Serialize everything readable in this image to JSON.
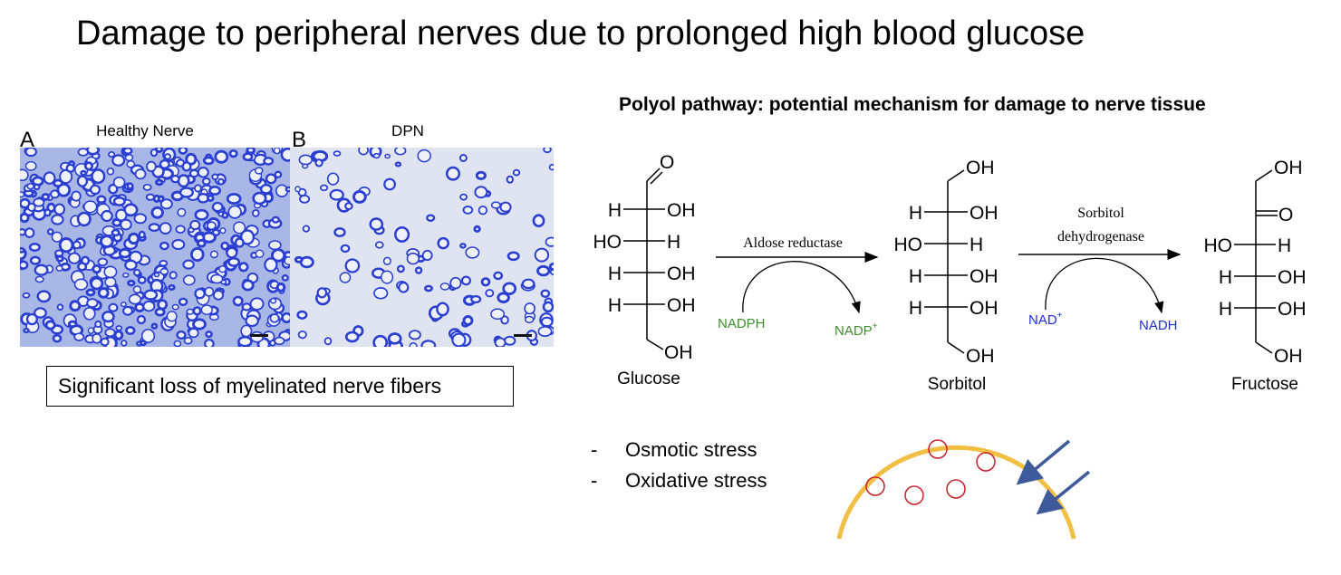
{
  "title": "Damage to peripheral nerves due to prolonged high blood glucose",
  "micrographs": [
    {
      "label": "A",
      "title": "Healthy Nerve"
    },
    {
      "label": "B",
      "title": "DPN"
    }
  ],
  "caption": "Significant loss of myelinated nerve fibers",
  "pathway": {
    "title": "Polyol pathway: potential mechanism for damage to nerve tissue",
    "molecules": [
      {
        "name": "Glucose",
        "left_groups": [
          "H",
          "HO",
          "H",
          "H"
        ],
        "right_groups": [
          "OH",
          "H",
          "OH",
          "OH"
        ],
        "top": "O",
        "bottom": "OH"
      },
      {
        "name": "Sorbitol",
        "left_groups": [
          "H",
          "HO",
          "H",
          "H"
        ],
        "right_groups": [
          "OH",
          "H",
          "OH",
          "OH"
        ],
        "top": "OH",
        "bottom": "OH"
      },
      {
        "name": "Fructose",
        "left_groups": [
          "HO",
          "H",
          "H"
        ],
        "right_groups": [
          "H",
          "OH",
          "OH"
        ],
        "top": "OH",
        "carbonyl": "O",
        "bottom": "OH"
      }
    ],
    "enzyme1": "Aldose reductase",
    "cofactor1_in": "NADPH",
    "cofactor1_out": "NADP",
    "cofactor1_out_sup": "+",
    "enzyme2_line1": "Sorbitol",
    "enzyme2_line2": "dehydrogenase",
    "cofactor2_in": "NAD",
    "cofactor2_in_sup": "+",
    "cofactor2_out": "NADH"
  },
  "effects": [
    "Osmotic stress",
    "Oxidative stress"
  ],
  "colors": {
    "myelin": "#2a3fd0",
    "stain_bg_healthy": "#a9b7e6",
    "stain_bg_dpn": "#dfe4f0",
    "nadph_green": "#3f8f2f",
    "nad_blue": "#1f2fd6",
    "cell_membrane": "#f2bf45",
    "vesicle": "#c8202a",
    "arrow_blue": "#3f5a9a"
  }
}
